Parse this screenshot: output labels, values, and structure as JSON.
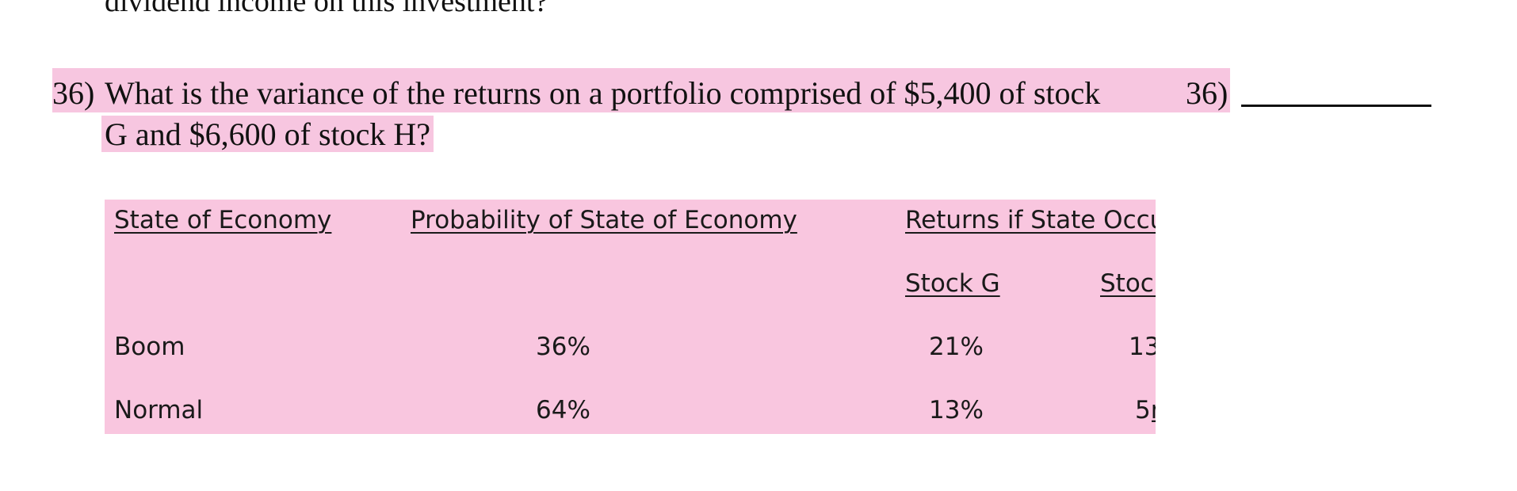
{
  "previous_question": {
    "tail_text": "dividend income on this investment?"
  },
  "question": {
    "number_label": "36)",
    "line1": "What is the variance of the returns on a portfolio comprised of $5,400 of stock",
    "line2": "G and $6,600 of stock H?",
    "answer_label": "36)"
  },
  "table": {
    "headers": {
      "state": "State of Economy",
      "probability": "Probability of State of Economy",
      "returns": "Returns if State Occu",
      "stock_g": "Stock G",
      "stock_h": "Stocl"
    },
    "rows": [
      {
        "state": "Boom",
        "probability": "36%",
        "stock_g": "21%",
        "stock_h": "13"
      },
      {
        "state": "Normal",
        "probability": "64%",
        "stock_g": "13%",
        "stock_h": "5ṟ"
      }
    ]
  },
  "colors": {
    "highlight": "#f7c6e0",
    "table_background": "#f9c6df",
    "text": "#111111"
  }
}
